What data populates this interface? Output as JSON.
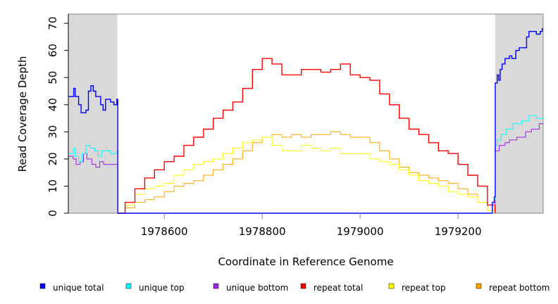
{
  "chart_data": {
    "type": "line",
    "title": "",
    "xlabel": "Coordinate in Reference Genome",
    "ylabel": "Read Coverage Depth",
    "xlim": [
      1978404,
      1979374
    ],
    "ylim": [
      0,
      73.4
    ],
    "xticks": [
      1978600,
      1978800,
      1979000,
      1979200
    ],
    "yticks": [
      0,
      10,
      20,
      30,
      40,
      50,
      60,
      70
    ],
    "shaded_regions": [
      [
        1978404,
        1978504
      ],
      [
        1979276,
        1979374
      ]
    ],
    "shade_color": "#d9d9d9",
    "legend_position": "bottom",
    "series": [
      {
        "name": "unique total",
        "color": "#0000ff",
        "points": [
          [
            1978404,
            43
          ],
          [
            1978415,
            46
          ],
          [
            1978418,
            43
          ],
          [
            1978425,
            40
          ],
          [
            1978430,
            37
          ],
          [
            1978440,
            38
          ],
          [
            1978445,
            45
          ],
          [
            1978450,
            47
          ],
          [
            1978455,
            45
          ],
          [
            1978460,
            43
          ],
          [
            1978470,
            40
          ],
          [
            1978475,
            38
          ],
          [
            1978480,
            42
          ],
          [
            1978490,
            41
          ],
          [
            1978497,
            40
          ],
          [
            1978503,
            42
          ],
          [
            1978505,
            0
          ],
          [
            1979268,
            0
          ],
          [
            1979270,
            4
          ],
          [
            1979274,
            6
          ],
          [
            1979276,
            48
          ],
          [
            1979280,
            51
          ],
          [
            1979283,
            49
          ],
          [
            1979286,
            53
          ],
          [
            1979290,
            55
          ],
          [
            1979296,
            57
          ],
          [
            1979305,
            58
          ],
          [
            1979310,
            57
          ],
          [
            1979318,
            60
          ],
          [
            1979325,
            61
          ],
          [
            1979340,
            65
          ],
          [
            1979345,
            67
          ],
          [
            1979360,
            66
          ],
          [
            1979368,
            67
          ],
          [
            1979372,
            68
          ],
          [
            1979374,
            68
          ]
        ]
      },
      {
        "name": "unique top",
        "color": "#00ffff",
        "points": [
          [
            1978404,
            22
          ],
          [
            1978414,
            24
          ],
          [
            1978418,
            21
          ],
          [
            1978425,
            19
          ],
          [
            1978432,
            22
          ],
          [
            1978440,
            25
          ],
          [
            1978448,
            24
          ],
          [
            1978458,
            23
          ],
          [
            1978465,
            21
          ],
          [
            1978472,
            23
          ],
          [
            1978490,
            22
          ],
          [
            1978503,
            23
          ],
          [
            1978505,
            0
          ],
          [
            1979270,
            0
          ],
          [
            1979274,
            5
          ],
          [
            1979276,
            25
          ],
          [
            1979280,
            27
          ],
          [
            1979288,
            29
          ],
          [
            1979298,
            31
          ],
          [
            1979312,
            33
          ],
          [
            1979330,
            34
          ],
          [
            1979345,
            36
          ],
          [
            1979360,
            35
          ],
          [
            1979374,
            35
          ]
        ]
      },
      {
        "name": "unique bottom",
        "color": "#a020f0",
        "points": [
          [
            1978404,
            21
          ],
          [
            1978414,
            20
          ],
          [
            1978420,
            18
          ],
          [
            1978428,
            19
          ],
          [
            1978435,
            22
          ],
          [
            1978442,
            20
          ],
          [
            1978452,
            18
          ],
          [
            1978460,
            17
          ],
          [
            1978468,
            19
          ],
          [
            1978476,
            18
          ],
          [
            1978503,
            18
          ],
          [
            1978505,
            0
          ],
          [
            1979270,
            0
          ],
          [
            1979274,
            3
          ],
          [
            1979276,
            23
          ],
          [
            1979284,
            25
          ],
          [
            1979296,
            26
          ],
          [
            1979305,
            27
          ],
          [
            1979320,
            28
          ],
          [
            1979338,
            30
          ],
          [
            1979350,
            31
          ],
          [
            1979366,
            33
          ],
          [
            1979374,
            33
          ]
        ]
      },
      {
        "name": "repeat total",
        "color": "#ff0000",
        "x": [
          1978504,
          1978520,
          1978540,
          1978560,
          1978580,
          1978600,
          1978620,
          1978640,
          1978660,
          1978680,
          1978700,
          1978720,
          1978740,
          1978760,
          1978780,
          1978800,
          1978820,
          1978840,
          1978860,
          1978880,
          1978900,
          1978920,
          1978940,
          1978960,
          1978980,
          1979000,
          1979020,
          1979040,
          1979060,
          1979080,
          1979100,
          1979120,
          1979140,
          1979160,
          1979180,
          1979200,
          1979220,
          1979240,
          1979260,
          1979276
        ],
        "values": [
          0,
          4,
          9,
          13,
          16,
          19,
          21,
          25,
          28,
          31,
          35,
          38,
          41,
          46,
          53,
          57,
          55,
          51,
          51,
          53,
          53,
          52,
          53,
          55,
          51,
          50,
          49,
          44,
          40,
          35,
          31,
          29,
          26,
          23,
          22,
          18,
          14,
          10,
          3,
          0
        ]
      },
      {
        "name": "repeat top",
        "color": "#ffff00",
        "x": [
          1978504,
          1978520,
          1978540,
          1978560,
          1978580,
          1978600,
          1978620,
          1978640,
          1978660,
          1978680,
          1978700,
          1978720,
          1978740,
          1978760,
          1978780,
          1978800,
          1978820,
          1978840,
          1978860,
          1978880,
          1978900,
          1978920,
          1978940,
          1978960,
          1978980,
          1979000,
          1979020,
          1979040,
          1979060,
          1979080,
          1979100,
          1979120,
          1979140,
          1979160,
          1979180,
          1979200,
          1979220,
          1979240,
          1979260,
          1979276
        ],
        "values": [
          0,
          3,
          7,
          9,
          10,
          11,
          14,
          16,
          18,
          19,
          20,
          22,
          24,
          26,
          27,
          28,
          25,
          23,
          23,
          25,
          24,
          23,
          24,
          22,
          22,
          22,
          20,
          19,
          18,
          16,
          14,
          12,
          11,
          10,
          8,
          7,
          6,
          4,
          1,
          0
        ]
      },
      {
        "name": "repeat bottom",
        "color": "#ffa500",
        "x": [
          1978504,
          1978520,
          1978540,
          1978560,
          1978580,
          1978600,
          1978620,
          1978640,
          1978660,
          1978680,
          1978700,
          1978720,
          1978740,
          1978760,
          1978780,
          1978800,
          1978820,
          1978840,
          1978860,
          1978880,
          1978900,
          1978920,
          1978940,
          1978960,
          1978980,
          1979000,
          1979020,
          1979040,
          1979060,
          1979080,
          1979100,
          1979120,
          1979140,
          1979160,
          1979180,
          1979200,
          1979220,
          1979240,
          1979260,
          1979276
        ],
        "values": [
          0,
          2,
          4,
          5,
          6,
          8,
          10,
          11,
          12,
          14,
          16,
          18,
          20,
          23,
          26,
          28,
          29,
          28,
          29,
          28,
          29,
          29,
          30,
          29,
          28,
          28,
          26,
          23,
          20,
          17,
          15,
          14,
          13,
          12,
          11,
          9,
          7,
          4,
          1,
          0
        ]
      }
    ]
  }
}
